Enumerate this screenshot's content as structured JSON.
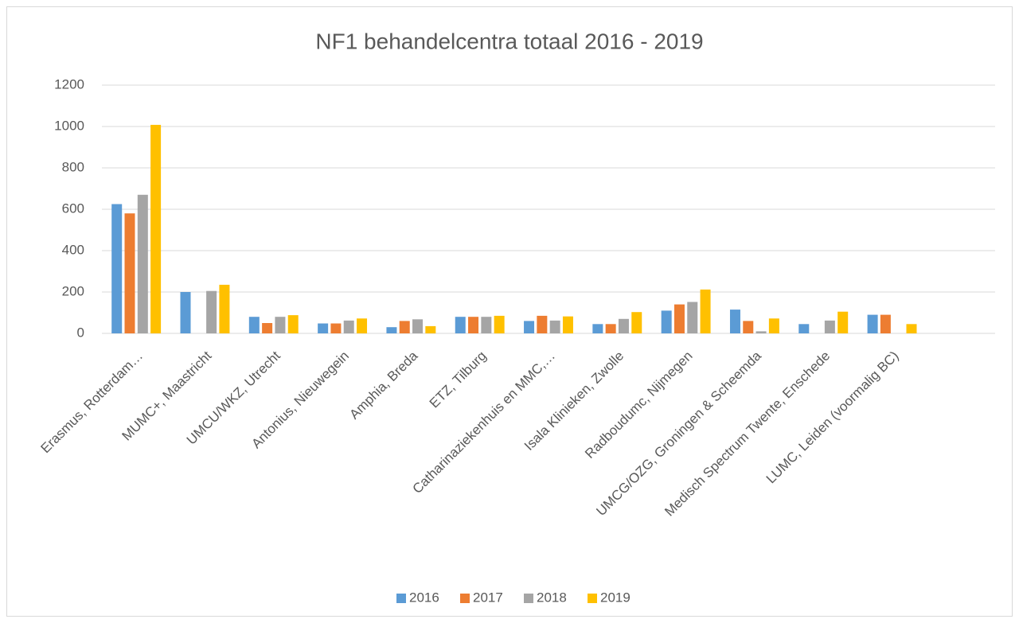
{
  "chart_data": {
    "type": "bar",
    "title": "NF1 behandelcentra totaal 2016 - 2019",
    "categories": [
      "Erasmus, Rotterdam…",
      "MUMC+, Maastricht",
      "UMCU/WKZ, Utrecht",
      "Antonius, Nieuwegein",
      "Amphia, Breda",
      "ETZ, Tilburg",
      "Catharinaziekenhuis en MMC,…",
      "Isala Klinieken, Zwolle",
      "Radboudumc, Nijmegen",
      "UMCG/OZG, Groningen & Scheemda",
      "Medisch Spectrum Twente, Enschede",
      "LUMC, Leiden (voormalig BC)",
      null
    ],
    "series": [
      {
        "name": "2016",
        "color": "#5b9bd5",
        "values": [
          625,
          200,
          80,
          48,
          30,
          80,
          60,
          45,
          110,
          115,
          45,
          90,
          null
        ]
      },
      {
        "name": "2017",
        "color": "#ed7d31",
        "values": [
          580,
          null,
          50,
          48,
          60,
          80,
          85,
          45,
          140,
          60,
          null,
          90,
          null
        ]
      },
      {
        "name": "2018",
        "color": "#a5a5a5",
        "values": [
          670,
          205,
          80,
          62,
          68,
          80,
          62,
          70,
          152,
          10,
          62,
          null,
          null
        ]
      },
      {
        "name": "2019",
        "color": "#ffc000",
        "values": [
          1008,
          235,
          88,
          72,
          35,
          85,
          82,
          103,
          212,
          72,
          105,
          45,
          null
        ]
      }
    ],
    "ylim": [
      0,
      1200
    ],
    "yticks": [
      0,
      200,
      400,
      600,
      800,
      1000,
      1200
    ],
    "grid": true,
    "legend": "bottom"
  }
}
